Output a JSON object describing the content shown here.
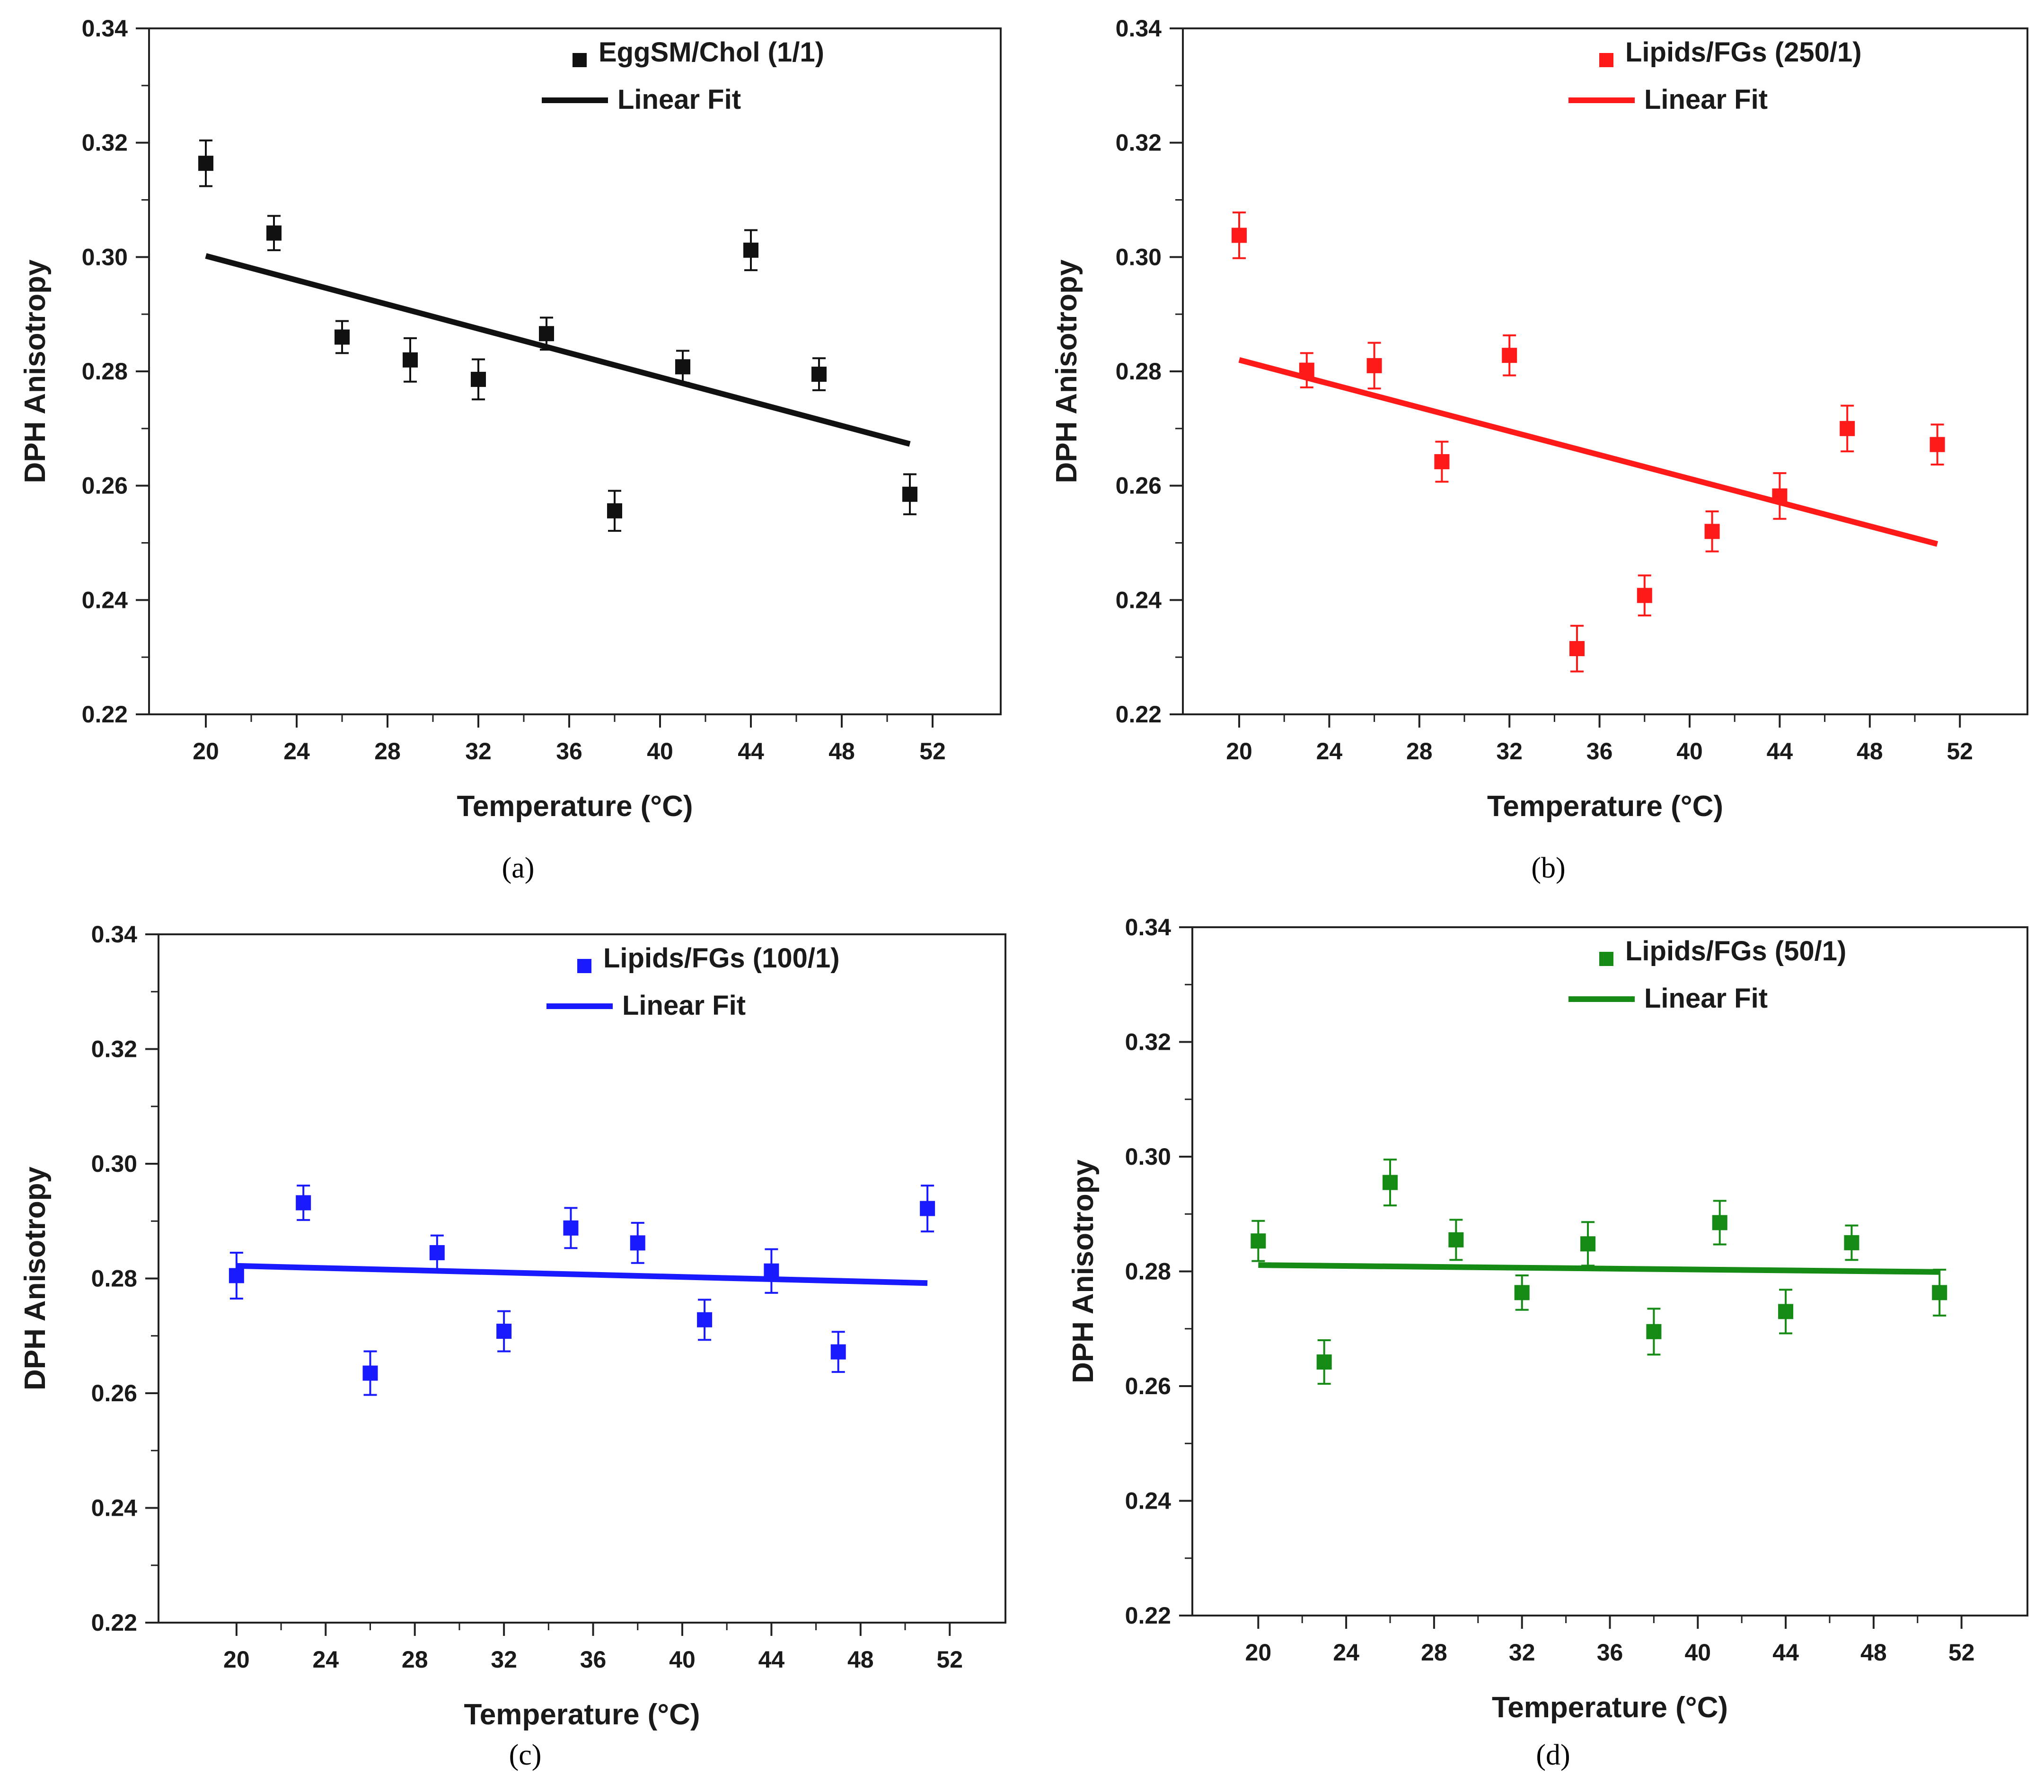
{
  "chart_data": [
    {
      "type": "scatter",
      "panel_label": "(a)",
      "xlabel": "Temperature (°C)",
      "ylabel": "DPH Anisotropy",
      "xlim": [
        17.5,
        55
      ],
      "ylim": [
        0.22,
        0.34
      ],
      "xticks": [
        20,
        24,
        28,
        32,
        36,
        40,
        44,
        48,
        52
      ],
      "yticks": [
        0.22,
        0.24,
        0.26,
        0.28,
        0.3,
        0.32,
        0.34
      ],
      "xtick_labels": [
        "20",
        "24",
        "28",
        "32",
        "36",
        "40",
        "44",
        "48",
        "52"
      ],
      "ytick_labels": [
        "0.22",
        "0.24",
        "0.26",
        "0.28",
        "0.30",
        "0.32",
        "0.34"
      ],
      "color": "#111111",
      "legend": {
        "series": "EggSM/Chol (1/1)",
        "fit": "Linear Fit",
        "placement": "top-right"
      },
      "series": [
        {
          "name": "EggSM/Chol (1/1)",
          "x": [
            20,
            23,
            26,
            29,
            32,
            35,
            38,
            41,
            44,
            47,
            51
          ],
          "y": [
            0.3164,
            0.3042,
            0.286,
            0.282,
            0.2786,
            0.2866,
            0.2556,
            0.2808,
            0.3012,
            0.2795,
            0.2585
          ],
          "err": [
            0.004,
            0.003,
            0.0028,
            0.0038,
            0.0035,
            0.0028,
            0.0035,
            0.0028,
            0.0035,
            0.0028,
            0.0035
          ]
        }
      ],
      "fit": {
        "x": [
          20,
          51
        ],
        "y": [
          0.3002,
          0.2673
        ]
      }
    },
    {
      "type": "scatter",
      "panel_label": "(b)",
      "xlabel": "Temperature (°C)",
      "ylabel": "DPH Anisotropy",
      "xlim": [
        17.5,
        55
      ],
      "ylim": [
        0.22,
        0.34
      ],
      "xticks": [
        20,
        24,
        28,
        32,
        36,
        40,
        44,
        48,
        52
      ],
      "yticks": [
        0.22,
        0.24,
        0.26,
        0.28,
        0.3,
        0.32,
        0.34
      ],
      "xtick_labels": [
        "20",
        "24",
        "28",
        "32",
        "36",
        "40",
        "44",
        "48",
        "52"
      ],
      "ytick_labels": [
        "0.22",
        "0.24",
        "0.26",
        "0.28",
        "0.30",
        "0.32",
        "0.34"
      ],
      "color": "#ff1a1a",
      "legend": {
        "series": "Lipids/FGs (250/1)",
        "fit": "Linear Fit",
        "placement": "top-right"
      },
      "series": [
        {
          "name": "Lipids/FGs (250/1)",
          "x": [
            20,
            23,
            26,
            29,
            32,
            35,
            38,
            41,
            44,
            47,
            51
          ],
          "y": [
            0.3038,
            0.2802,
            0.281,
            0.2642,
            0.2828,
            0.2315,
            0.2408,
            0.252,
            0.2582,
            0.27,
            0.2672
          ],
          "err": [
            0.004,
            0.003,
            0.004,
            0.0035,
            0.0035,
            0.004,
            0.0035,
            0.0035,
            0.004,
            0.004,
            0.0035
          ]
        }
      ],
      "fit": {
        "x": [
          20,
          51
        ],
        "y": [
          0.282,
          0.2498
        ]
      }
    },
    {
      "type": "scatter",
      "panel_label": "(c)",
      "xlabel": "Temperature (°C)",
      "ylabel": "DPH Anisotropy",
      "xlim": [
        16.5,
        54.5
      ],
      "ylim": [
        0.22,
        0.34
      ],
      "xticks": [
        20,
        24,
        28,
        32,
        36,
        40,
        44,
        48,
        52
      ],
      "yticks": [
        0.22,
        0.24,
        0.26,
        0.28,
        0.3,
        0.32,
        0.34
      ],
      "xtick_labels": [
        "20",
        "24",
        "28",
        "32",
        "36",
        "40",
        "44",
        "48",
        "52"
      ],
      "ytick_labels": [
        "0.22",
        "0.24",
        "0.26",
        "0.28",
        "0.30",
        "0.32",
        "0.34"
      ],
      "color": "#1a1aff",
      "legend": {
        "series": "Lipids/FGs (100/1)",
        "fit": "Linear Fit",
        "placement": "top-right"
      },
      "series": [
        {
          "name": "Lipids/FGs (100/1)",
          "x": [
            20,
            23,
            26,
            29,
            32,
            35,
            38,
            41,
            44,
            47,
            51
          ],
          "y": [
            0.2805,
            0.2932,
            0.2635,
            0.2845,
            0.2708,
            0.2888,
            0.2862,
            0.2728,
            0.2813,
            0.2672,
            0.2922
          ],
          "err": [
            0.004,
            0.003,
            0.0038,
            0.003,
            0.0035,
            0.0035,
            0.0035,
            0.0035,
            0.0038,
            0.0035,
            0.004
          ]
        }
      ],
      "fit": {
        "x": [
          20,
          51
        ],
        "y": [
          0.2822,
          0.2792
        ]
      }
    },
    {
      "type": "scatter",
      "panel_label": "(d)",
      "xlabel": "Temperature (°C)",
      "ylabel": "DPH Anisotropy",
      "xlim": [
        17,
        55
      ],
      "ylim": [
        0.22,
        0.34
      ],
      "xticks": [
        20,
        24,
        28,
        32,
        36,
        40,
        44,
        48,
        52
      ],
      "yticks": [
        0.22,
        0.24,
        0.26,
        0.28,
        0.3,
        0.32,
        0.34
      ],
      "xtick_labels": [
        "20",
        "24",
        "28",
        "32",
        "36",
        "40",
        "44",
        "48",
        "52"
      ],
      "ytick_labels": [
        "0.22",
        "0.24",
        "0.26",
        "0.28",
        "0.30",
        "0.32",
        "0.34"
      ],
      "color": "#158a15",
      "legend": {
        "series": "Lipids/FGs (50/1)",
        "fit": "Linear Fit",
        "placement": "top-right"
      },
      "series": [
        {
          "name": "Lipids/FGs (50/1)",
          "x": [
            20,
            23,
            26,
            29,
            32,
            35,
            38,
            41,
            44,
            47,
            51
          ],
          "y": [
            0.2853,
            0.2642,
            0.2955,
            0.2855,
            0.2763,
            0.2848,
            0.2695,
            0.2885,
            0.273,
            0.285,
            0.2763
          ],
          "err": [
            0.0035,
            0.0038,
            0.004,
            0.0035,
            0.003,
            0.0038,
            0.004,
            0.0038,
            0.0038,
            0.003,
            0.004
          ]
        }
      ],
      "fit": {
        "x": [
          20,
          51
        ],
        "y": [
          0.2811,
          0.2799
        ]
      }
    }
  ]
}
